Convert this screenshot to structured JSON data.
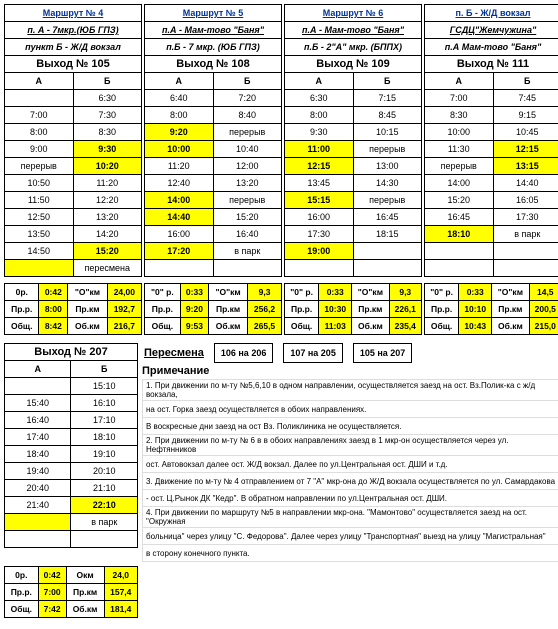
{
  "routes": [
    {
      "title": "Маршрут № 4",
      "pa": "п. А - 7мкр.(ЮБ ГПЗ)",
      "pb": "пункт Б - Ж/Д вокзал",
      "exit": "Выход № 105",
      "cols": [
        "А",
        "Б"
      ],
      "rows": [
        [
          "",
          "6:30",
          0
        ],
        [
          "7:00",
          "7:30",
          0
        ],
        [
          "8:00",
          "8:30",
          0
        ],
        [
          "9:00",
          "9:30",
          2
        ],
        [
          "перерыв",
          "10:20",
          2
        ],
        [
          "10:50",
          "11:20",
          0
        ],
        [
          "11:50",
          "12:20",
          0
        ],
        [
          "12:50",
          "13:20",
          0
        ],
        [
          "13:50",
          "14:20",
          0
        ],
        [
          "14:50",
          "15:20",
          2
        ],
        [
          "",
          "пересмена",
          1
        ]
      ],
      "totals": [
        [
          "0р.",
          "0:42",
          "\"О\"км",
          "24,00"
        ],
        [
          "Пр.р.",
          "8:00",
          "Пр.км",
          "192,7"
        ],
        [
          "Общ.",
          "8:42",
          "Об.км",
          "216,7"
        ]
      ]
    },
    {
      "title": "Маршрут № 5",
      "pa": "п.А - Мам-тово \"Баня\"",
      "pb": "п.Б - 7 мкр. (ЮБ ГПЗ)",
      "exit": "Выход № 108",
      "cols": [
        "А",
        "Б"
      ],
      "rows": [
        [
          "6:40",
          "7:20",
          0
        ],
        [
          "8:00",
          "8:40",
          0
        ],
        [
          "9:20",
          "перерыв",
          1
        ],
        [
          "10:00",
          "10:40",
          1
        ],
        [
          "11:20",
          "12:00",
          0
        ],
        [
          "12:40",
          "13:20",
          0
        ],
        [
          "14:00",
          "перерыв",
          1
        ],
        [
          "14:40",
          "15:20",
          1
        ],
        [
          "16:00",
          "16:40",
          0
        ],
        [
          "17:20",
          "в парк",
          1
        ]
      ],
      "totals": [
        [
          "\"0\" р.",
          "0:33",
          "\"О\"км",
          "9,3"
        ],
        [
          "Пр.р.",
          "9:20",
          "Пр.км",
          "256,2"
        ],
        [
          "Общ.",
          "9:53",
          "Об.км",
          "265,5"
        ]
      ]
    },
    {
      "title": "Маршрут № 6",
      "pa": "п.А - Мам-тово \"Баня\"",
      "pb": "п.Б - 2\"А\" мкр. (БППХ)",
      "exit": "Выход № 109",
      "cols": [
        "А",
        "Б"
      ],
      "rows": [
        [
          "6:30",
          "7:15",
          0
        ],
        [
          "8:00",
          "8:45",
          0
        ],
        [
          "9:30",
          "10:15",
          0
        ],
        [
          "11:00",
          "перерыв",
          1
        ],
        [
          "12:15",
          "13:00",
          1
        ],
        [
          "13:45",
          "14:30",
          0
        ],
        [
          "15:15",
          "перерыв",
          1
        ],
        [
          "16:00",
          "16:45",
          0
        ],
        [
          "17:30",
          "18:15",
          0
        ],
        [
          "19:00",
          "",
          1
        ]
      ],
      "totals": [
        [
          "\"0\" р.",
          "0:33",
          "\"О\"км",
          "9,3"
        ],
        [
          "Пр.р.",
          "10:30",
          "Пр.км",
          "226,1"
        ],
        [
          "Общ.",
          "11:03",
          "Об.км",
          "235,4"
        ]
      ]
    },
    {
      "title": "п. Б - Ж/Д вокзал",
      "pa": "ГСДЦ\"Жемчужина\"",
      "pb": "п.А Мам-тово \"Баня\"",
      "exit": "Выход № 111",
      "cols": [
        "А",
        "Б"
      ],
      "rows": [
        [
          "7:00",
          "7:45",
          0
        ],
        [
          "8:30",
          "9:15",
          0
        ],
        [
          "10:00",
          "10:45",
          0
        ],
        [
          "11:30",
          "12:15",
          2
        ],
        [
          "перерыв",
          "13:15",
          2
        ],
        [
          "14:00",
          "14:40",
          0
        ],
        [
          "15:20",
          "16:05",
          0
        ],
        [
          "16:45",
          "17:30",
          0
        ],
        [
          "18:10",
          "в парк",
          1
        ]
      ],
      "totals": [
        [
          "\"0\" р.",
          "0:33",
          "\"О\"км",
          "14,5"
        ],
        [
          "Пр.р.",
          "10:10",
          "Пр.км",
          "200,5"
        ],
        [
          "Общ.",
          "10:43",
          "Об.км",
          "215,0"
        ]
      ]
    }
  ],
  "bottom": {
    "exit": "Выход № 207",
    "cols": [
      "А",
      "Б"
    ],
    "rows": [
      [
        "",
        "15:10",
        0
      ],
      [
        "15:40",
        "16:10",
        0
      ],
      [
        "16:40",
        "17:10",
        0
      ],
      [
        "17:40",
        "18:10",
        0
      ],
      [
        "18:40",
        "19:10",
        0
      ],
      [
        "19:40",
        "20:10",
        0
      ],
      [
        "20:40",
        "21:10",
        0
      ],
      [
        "21:40",
        "22:10",
        2
      ],
      [
        "",
        "в парк",
        1
      ]
    ],
    "totals": [
      [
        "0р.",
        "0:42",
        "Окм",
        "24,0"
      ],
      [
        "Пр.р.",
        "7:00",
        "Пр.км",
        "157,4"
      ],
      [
        "Общ.",
        "7:42",
        "Об.км",
        "181,4"
      ]
    ]
  },
  "peresm": {
    "label": "Пересмена",
    "boxes": [
      "106 на 206",
      "107 на 205",
      "105 на 207"
    ]
  },
  "noteslabel": "Примечание",
  "notes": [
    "1. При движении по м-ту №5,6,10 в одном направлении, осуществляется заезд на ост. Вз.Полик-ка с ж/д вокзала,",
    "на ост. Горка заезд осуществляется в обоих направлениях.",
    "В воскресные дни заезд на ост Вз. Поликлиника не осуществляется.",
    "2. При движении по м-ту № 6 в в обоих направлениях заезд в 1 мкр-он осуществляется через ул. Нефтянников",
    "ост. Автовокзал далее ост. Ж/Д вокзал. Далее по ул.Центральная ост. ДШИ и т.д.",
    "3. Движение по м-ту № 4 отправлением от 7 \"А\" мкр-она до Ж/Д вокзала осуществляется по ул. Самардакова",
    "- ост. Ц.Рынок ДК \"Кедр\". В обратном направлении по ул.Центральная ост. ДШИ.",
    "4. При движении по маршруту №5 в направлении мкр-она. \"Мамонтово\" осуществляется заезд на ост. \"Окружная",
    "больница\" через улицу \"С. Федорова\". Далее через улицу \"Транспортная\" выезд на улицу \"Магистральная\"",
    "в сторону конечного пункта."
  ]
}
